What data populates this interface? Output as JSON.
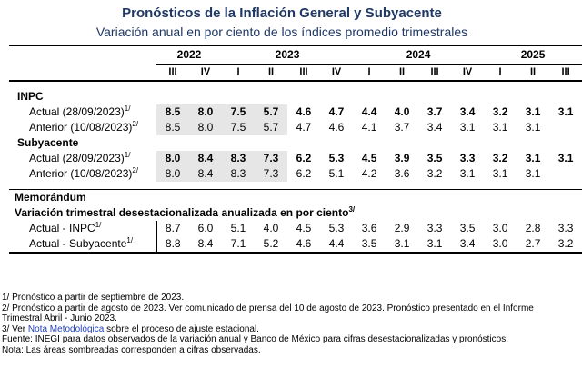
{
  "title": "Pronósticos de la Inflación General y Subyacente",
  "subtitle": "Variación anual en por ciento de los índices promedio trimestrales",
  "years": [
    "2022",
    "2023",
    "2024",
    "2025"
  ],
  "quarters": [
    "III",
    "IV",
    "I",
    "II",
    "III",
    "IV",
    "I",
    "II",
    "III",
    "IV",
    "I",
    "II",
    "III"
  ],
  "sections": {
    "inpc": "INPC",
    "subyacente": "Subyacente",
    "memorandum": "Memorándum",
    "memo_sub": "Variación trimestral desestacionalizada anualizada en por ciento",
    "memo_sub_sup": "3/"
  },
  "rows": {
    "inpc_actual": {
      "label": "Actual (28/09/2023)",
      "sup": "1/",
      "values": [
        "8.5",
        "8.0",
        "7.5",
        "5.7",
        "4.6",
        "4.7",
        "4.4",
        "4.0",
        "3.7",
        "3.4",
        "3.2",
        "3.1",
        "3.1"
      ]
    },
    "inpc_anterior": {
      "label": "Anterior (10/08/2023)",
      "sup": "2/",
      "values": [
        "8.5",
        "8.0",
        "7.5",
        "5.7",
        "4.7",
        "4.6",
        "4.1",
        "3.7",
        "3.4",
        "3.1",
        "3.1",
        "3.1",
        ""
      ]
    },
    "sub_actual": {
      "label": "Actual (28/09/2023)",
      "sup": "1/",
      "values": [
        "8.0",
        "8.4",
        "8.3",
        "7.3",
        "6.2",
        "5.3",
        "4.5",
        "3.9",
        "3.5",
        "3.3",
        "3.2",
        "3.1",
        "3.1"
      ]
    },
    "sub_anterior": {
      "label": "Anterior (10/08/2023)",
      "sup": "2/",
      "values": [
        "8.0",
        "8.4",
        "8.3",
        "7.3",
        "6.2",
        "5.1",
        "4.2",
        "3.6",
        "3.2",
        "3.1",
        "3.1",
        "3.1",
        ""
      ]
    },
    "memo_inpc": {
      "label": "Actual - INPC",
      "sup": "1/",
      "values": [
        "8.7",
        "6.0",
        "5.1",
        "4.0",
        "4.5",
        "5.3",
        "3.6",
        "2.9",
        "3.3",
        "3.5",
        "3.0",
        "2.8",
        "3.3"
      ]
    },
    "memo_sub": {
      "label": "Actual - Subyacente",
      "sup": "1/",
      "values": [
        "8.8",
        "8.4",
        "7.1",
        "5.2",
        "4.6",
        "4.4",
        "3.5",
        "3.1",
        "3.1",
        "3.4",
        "3.0",
        "2.7",
        "3.2"
      ]
    }
  },
  "notes": {
    "n1": "1/ Pronóstico a partir de septiembre de 2023.",
    "n2": "2/ Pronóstico a partir de agosto de 2023. Ver comunicado de prensa del 10 de agosto de 2023. Pronóstico presentado en el Informe Trimestral Abril - Junio 2023.",
    "n3_pre": "3/ Ver ",
    "n3_link": "Nota Metodológica",
    "n3_post": " sobre el proceso de ajuste estacional.",
    "fuente": "Fuente: INEGI para datos observados de la variación anual y Banco de México para cifras desestacionalizadas y pronósticos.",
    "nota": "Nota: Las áreas sombreadas corresponden a cifras observadas."
  },
  "colors": {
    "title": "#1f3864",
    "shaded": "#e6e6e6",
    "link": "#1f3fbf"
  }
}
